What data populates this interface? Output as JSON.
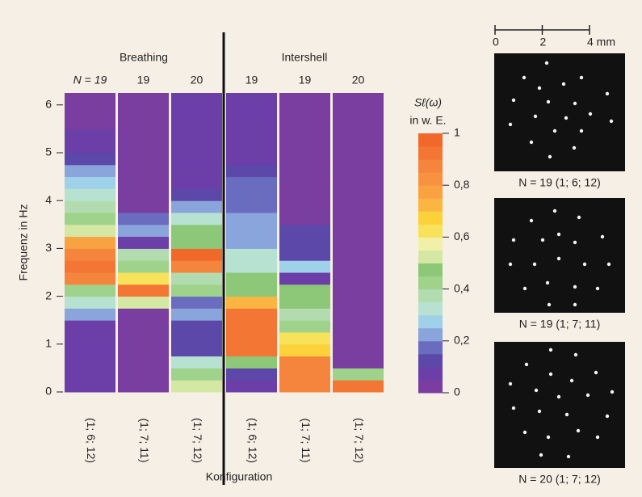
{
  "chart_data": {
    "type": "heatmap",
    "groups": [
      "Breathing",
      "Intershell"
    ],
    "ylabel": "Frequenz in Hz",
    "xlabel": "Konfiguration",
    "ylim": [
      0,
      6.25
    ],
    "yticks": [
      0,
      1,
      2,
      3,
      4,
      5,
      6
    ],
    "y_bins": [
      0,
      0.25,
      0.5,
      0.75,
      1,
      1.25,
      1.5,
      1.75,
      2,
      2.25,
      2.5,
      2.75,
      3,
      3.25,
      3.5,
      3.75,
      4,
      4.25,
      4.5,
      4.75,
      5,
      5.25,
      5.5,
      5.75,
      6,
      6.25
    ],
    "series": [
      {
        "name": "(1; 6; 12)",
        "header": "N = 19",
        "values": [
          0.05,
          0.05,
          0.05,
          0.05,
          0.05,
          0.06,
          0.2,
          0.3,
          0.4,
          0.85,
          0.9,
          0.88,
          0.75,
          0.5,
          0.4,
          0.38,
          0.3,
          0.25,
          0.2,
          0.12,
          0.05,
          0.05,
          0.04,
          0.04,
          0.04
        ]
      },
      {
        "name": "(1; 7; 11)",
        "header": "19",
        "values": [
          0.03,
          0.03,
          0.03,
          0.03,
          0.03,
          0.03,
          0.03,
          0.5,
          0.9,
          0.6,
          0.4,
          0.38,
          0.05,
          0.2,
          0.15,
          0.04,
          0.04,
          0.04,
          0.04,
          0.04,
          0.04,
          0.04,
          0.04,
          0.04,
          0.04
        ]
      },
      {
        "name": "(1; 7; 12)",
        "header": "20",
        "values": [
          0.5,
          0.4,
          0.3,
          0.1,
          0.1,
          0.1,
          0.2,
          0.15,
          0.4,
          0.35,
          0.85,
          0.95,
          0.45,
          0.45,
          0.3,
          0.2,
          0.12,
          0.05,
          0.05,
          0.05,
          0.05,
          0.05,
          0.05,
          0.05,
          0.05
        ]
      },
      {
        "name": "(1; 6; 12)",
        "header": "19",
        "values": [
          0.05,
          0.1,
          0.45,
          0.9,
          0.9,
          0.9,
          0.9,
          0.7,
          0.45,
          0.45,
          0.3,
          0.3,
          0.22,
          0.22,
          0.22,
          0.15,
          0.15,
          0.15,
          0.1,
          0.05,
          0.05,
          0.05,
          0.05,
          0.05,
          0.05
        ]
      },
      {
        "name": "(1; 7; 11)",
        "header": "19",
        "values": [
          0.85,
          0.85,
          0.85,
          0.65,
          0.6,
          0.4,
          0.35,
          0.45,
          0.45,
          0.05,
          0.25,
          0.1,
          0.1,
          0.1,
          0.04,
          0.04,
          0.04,
          0.04,
          0.04,
          0.04,
          0.04,
          0.04,
          0.04,
          0.04,
          0.04
        ]
      },
      {
        "name": "(1; 7; 12)",
        "header": "20",
        "values": [
          0.9,
          0.4,
          0.02,
          0.02,
          0.02,
          0.02,
          0.02,
          0.02,
          0.02,
          0.02,
          0.02,
          0.02,
          0.02,
          0.02,
          0.02,
          0.02,
          0.02,
          0.02,
          0.02,
          0.02,
          0.02,
          0.02,
          0.02,
          0.02,
          0.02
        ]
      }
    ],
    "colorbar": {
      "title": "Sℓ(ω)",
      "unit": "in w. E.",
      "clim": [
        0,
        1
      ],
      "ticks": [
        0,
        {
          "value": 0.2,
          "label": "0,2"
        },
        {
          "value": 0.4,
          "label": "0,4"
        },
        {
          "value": 0.6,
          "label": "0,6"
        },
        {
          "value": 0.8,
          "label": "0,8"
        },
        1
      ]
    },
    "colormap": [
      "#7a3da0",
      "#6b3ea8",
      "#5c48a8",
      "#6a6cc0",
      "#8aa4dc",
      "#9fd2e8",
      "#b7e2d2",
      "#b2dcb0",
      "#9fd28a",
      "#8cc878",
      "#d4e8a4",
      "#f2f0a8",
      "#f8e25a",
      "#fbd23a",
      "#fbb642",
      "#f9a242",
      "#f79240",
      "#f5843c",
      "#f37634",
      "#f0682a"
    ]
  },
  "micrographs": {
    "scale_bar": [
      0,
      2,
      {
        "value": 4,
        "label": "4 mm"
      }
    ],
    "captions": [
      "N = 19 (1; 6; 12)",
      "N = 19 (1; 7; 11)",
      "N = 20 (1; 7; 12)"
    ]
  }
}
